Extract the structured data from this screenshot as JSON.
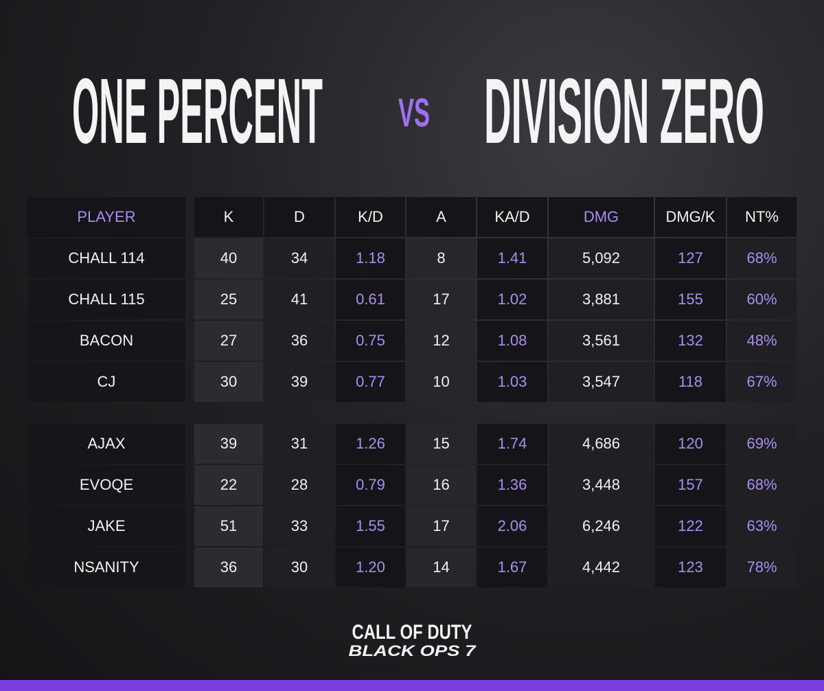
{
  "header": {
    "team_left": "ONE PERCENT",
    "versus": "VS",
    "team_right": "DIVISION ZERO"
  },
  "table": {
    "columns": [
      "PLAYER",
      "K",
      "D",
      "K/D",
      "A",
      "KA/D",
      "DMG",
      "DMG/K",
      "NT%"
    ],
    "groups": [
      [
        [
          "CHALL 114",
          "40",
          "34",
          "1.18",
          "8",
          "1.41",
          "5,092",
          "127",
          "68%"
        ],
        [
          "CHALL 115",
          "25",
          "41",
          "0.61",
          "17",
          "1.02",
          "3,881",
          "155",
          "60%"
        ],
        [
          "BACON",
          "27",
          "36",
          "0.75",
          "12",
          "1.08",
          "3,561",
          "132",
          "48%"
        ],
        [
          "CJ",
          "30",
          "39",
          "0.77",
          "10",
          "1.03",
          "3,547",
          "118",
          "67%"
        ]
      ],
      [
        [
          "AJAX",
          "39",
          "31",
          "1.26",
          "15",
          "1.74",
          "4,686",
          "120",
          "69%"
        ],
        [
          "EVOQE",
          "22",
          "28",
          "0.79",
          "16",
          "1.36",
          "3,448",
          "157",
          "68%"
        ],
        [
          "JAKE",
          "51",
          "33",
          "1.55",
          "17",
          "2.06",
          "6,246",
          "122",
          "63%"
        ],
        [
          "NSANITY",
          "36",
          "30",
          "1.20",
          "14",
          "1.67",
          "4,442",
          "123",
          "78%"
        ]
      ]
    ]
  },
  "footer": {
    "logo_line1": "CALL OF DUTY",
    "logo_line2": "BLACK OPS 7"
  }
}
